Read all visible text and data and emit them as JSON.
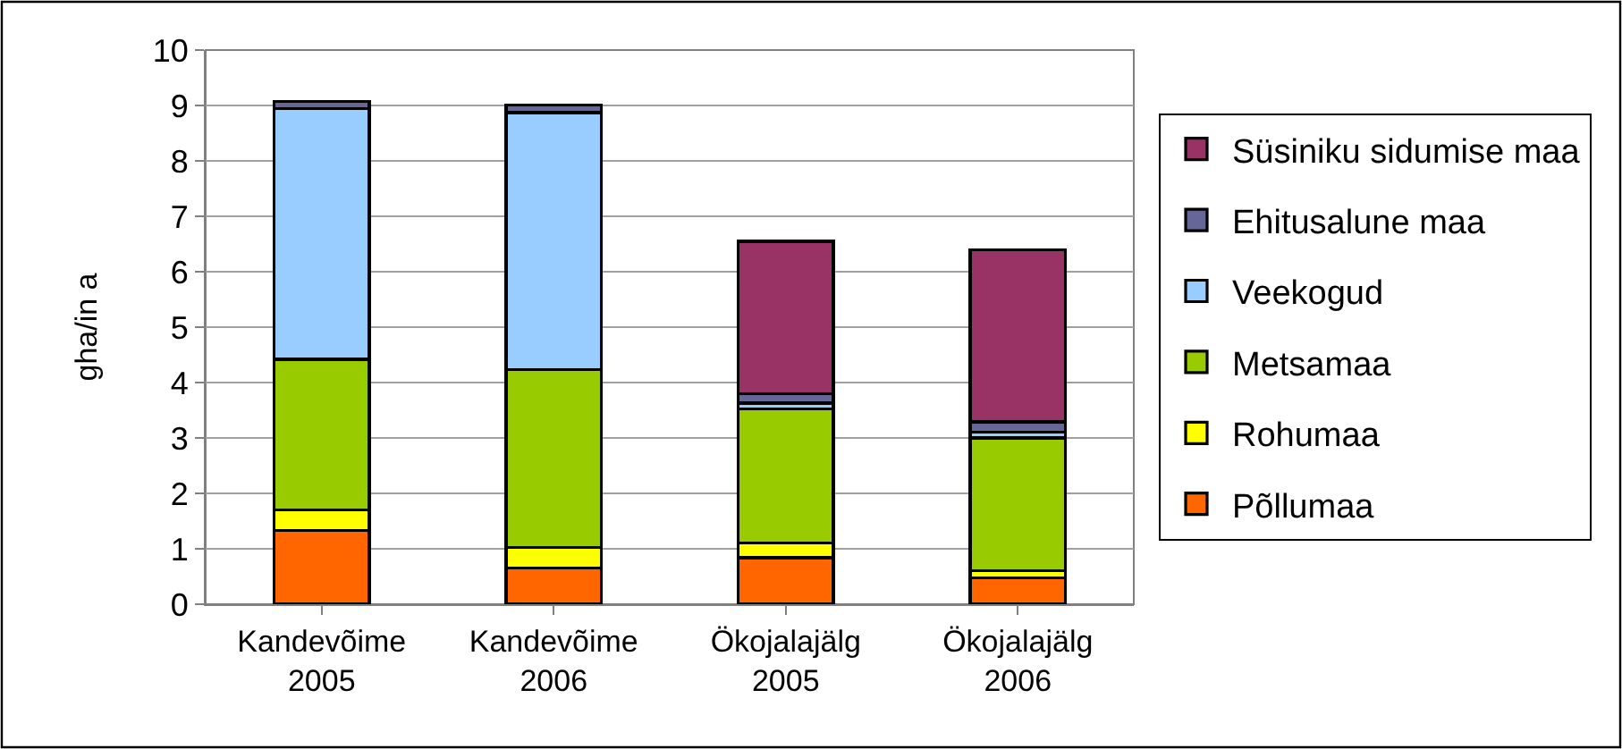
{
  "chart_data": {
    "type": "bar",
    "stacked": true,
    "ylabel": "gha/in a",
    "categories": [
      "Kandevõime\n2005",
      "Kandevõime\n2006",
      "Ökojalajälg\n2005",
      "Ökojalajälg\n2006"
    ],
    "series": [
      {
        "name": "Põllumaa",
        "color": "#ff6600",
        "values": [
          1.33,
          0.65,
          0.84,
          0.47
        ]
      },
      {
        "name": "Rohumaa",
        "color": "#ffff00",
        "values": [
          0.37,
          0.38,
          0.27,
          0.13
        ]
      },
      {
        "name": "Metsamaa",
        "color": "#99cc00",
        "values": [
          2.72,
          3.21,
          2.41,
          2.4
        ]
      },
      {
        "name": "Veekogud",
        "color": "#99ccff",
        "values": [
          4.52,
          4.63,
          0.11,
          0.11
        ]
      },
      {
        "name": "Ehitusalune maa",
        "color": "#666699",
        "values": [
          0.13,
          0.14,
          0.17,
          0.18
        ]
      },
      {
        "name": "Süsiniku sidumise maa",
        "color": "#993366",
        "values": [
          null,
          null,
          2.75,
          3.11
        ]
      }
    ],
    "ylim": [
      0,
      10
    ],
    "yticks": [
      0,
      1,
      2,
      3,
      4,
      5,
      6,
      7,
      8,
      9,
      10
    ],
    "grid": "y",
    "legend": "right"
  }
}
